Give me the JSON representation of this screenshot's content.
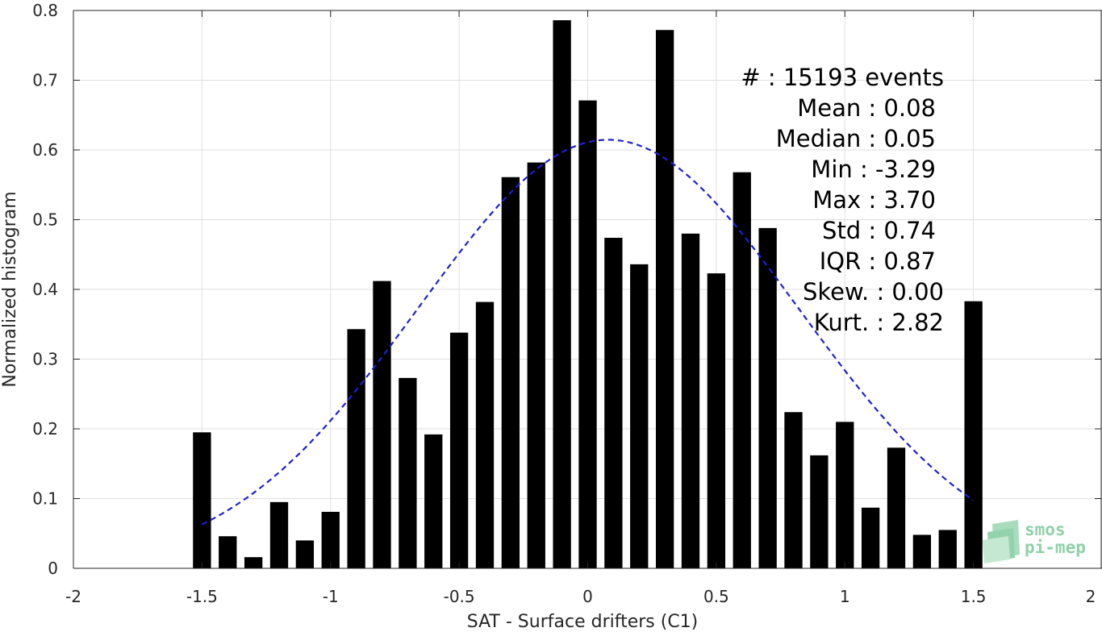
{
  "chart_data": {
    "type": "bar",
    "xlabel": "SAT - Surface drifters (C1)",
    "ylabel": "Normalized histogram",
    "xlim": [
      -2,
      2
    ],
    "ylim": [
      0,
      0.8
    ],
    "xticks": [
      "-2",
      "-1.5",
      "-1",
      "-0.5",
      "0",
      "0.5",
      "1",
      "1.5",
      "2"
    ],
    "xtick_values": [
      -2,
      -1.5,
      -1,
      -0.5,
      0,
      0.5,
      1,
      1.5,
      2
    ],
    "yticks": [
      "0",
      "0.1",
      "0.2",
      "0.3",
      "0.4",
      "0.5",
      "0.6",
      "0.7",
      "0.8"
    ],
    "ytick_values": [
      0,
      0.1,
      0.2,
      0.3,
      0.4,
      0.5,
      0.6,
      0.7,
      0.8
    ],
    "grid": true,
    "bar_color": "#000000",
    "bar_width": 0.07,
    "x": [
      -1.5,
      -1.4,
      -1.3,
      -1.2,
      -1.1,
      -1.0,
      -0.9,
      -0.8,
      -0.7,
      -0.6,
      -0.5,
      -0.4,
      -0.3,
      -0.2,
      -0.1,
      0.0,
      0.1,
      0.2,
      0.3,
      0.4,
      0.5,
      0.6,
      0.7,
      0.8,
      0.9,
      1.0,
      1.1,
      1.2,
      1.3,
      1.4,
      1.5
    ],
    "values": [
      0.195,
      0.046,
      0.016,
      0.095,
      0.04,
      0.081,
      0.343,
      0.412,
      0.273,
      0.192,
      0.338,
      0.382,
      0.561,
      0.582,
      0.786,
      0.671,
      0.474,
      0.436,
      0.772,
      0.48,
      0.423,
      0.568,
      0.488,
      0.224,
      0.162,
      0.21,
      0.087,
      0.173,
      0.048,
      0.055,
      0.383
    ],
    "fit": {
      "type": "normal",
      "mean": 0.08,
      "std": 0.74,
      "color": "#1f1fd6",
      "style": "dashed",
      "x_range": [
        -1.5,
        1.5
      ]
    },
    "annotations": [
      "#  : 15193 events",
      "Mean : 0.08",
      "Median : 0.05",
      "Min : -3.29",
      "Max : 3.70",
      "Std : 0.74",
      "IQR : 0.87",
      "Skew. : 0.00",
      "Kurt. : 2.82"
    ]
  },
  "logo": {
    "line1": "smos",
    "line2": "pi-mep",
    "color": "#8fd0a8"
  }
}
